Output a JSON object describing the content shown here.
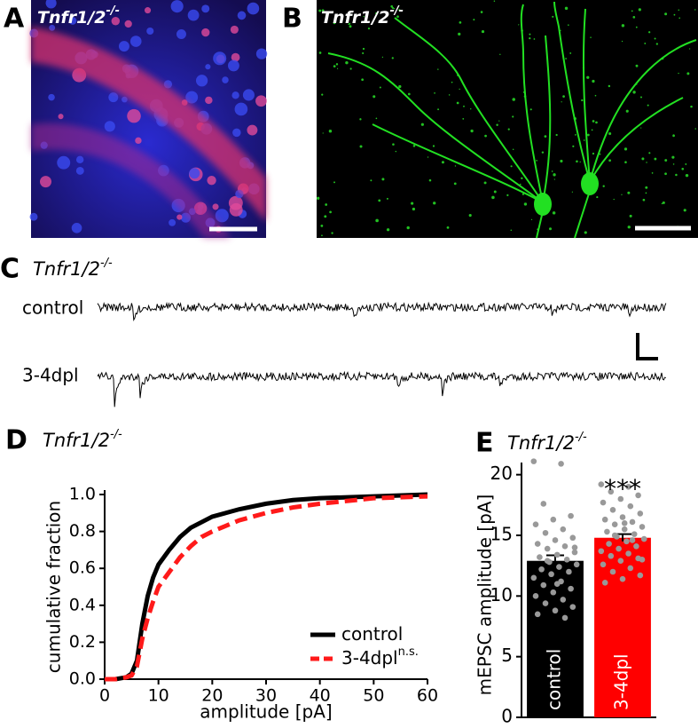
{
  "panels": {
    "A": {
      "label": "A",
      "title": "Tnfr1/2",
      "title_sup": "-/-"
    },
    "B": {
      "label": "B",
      "title": "Tnfr1/2",
      "title_sup": "-/-"
    },
    "C": {
      "label": "C",
      "title": "Tnfr1/2",
      "title_sup": "-/-",
      "traces": [
        "control",
        "3-4dpl"
      ]
    }
  },
  "chart_data": [
    {
      "type": "line",
      "label": "D",
      "title": "Tnfr1/2",
      "title_sup": "-/-",
      "x_label": "amplitude [pA]",
      "y_label": "cumulative fraction",
      "x": [
        0,
        2,
        4,
        5,
        6,
        7,
        8,
        9,
        10,
        12,
        14,
        16,
        18,
        20,
        25,
        30,
        35,
        40,
        50,
        60
      ],
      "series": [
        {
          "name": "control",
          "color": "#000000",
          "dashed": false,
          "values": [
            0,
            0,
            0.01,
            0.03,
            0.1,
            0.3,
            0.45,
            0.55,
            0.62,
            0.7,
            0.77,
            0.82,
            0.85,
            0.88,
            0.92,
            0.95,
            0.97,
            0.98,
            0.99,
            1.0
          ]
        },
        {
          "name": "3-4dpl",
          "color": "#ff1a1a",
          "dashed": true,
          "values": [
            0,
            0,
            0.01,
            0.02,
            0.07,
            0.22,
            0.33,
            0.42,
            0.5,
            0.58,
            0.66,
            0.72,
            0.77,
            0.8,
            0.86,
            0.9,
            0.93,
            0.95,
            0.98,
            0.99
          ]
        }
      ],
      "legend": "lower right",
      "legend_note": "n.s.",
      "xlim": [
        0,
        60
      ],
      "ylim": [
        0,
        1
      ],
      "xticks": [
        0,
        10,
        20,
        30,
        40,
        50,
        60
      ],
      "yticks": [
        {
          "value": 0,
          "label": "0.0"
        },
        0.2,
        0.4,
        0.6,
        0.8,
        {
          "value": 1,
          "label": "1.0"
        }
      ]
    },
    {
      "type": "bar",
      "label": "E",
      "title": "Tnfr1/2",
      "title_sup": "-/-",
      "y_label": "mEPSC amplitude [pA]",
      "categories": [
        "control",
        "3-4dpl"
      ],
      "values": [
        12.9,
        14.8
      ],
      "errors": [
        0.45,
        0.3
      ],
      "colors": [
        "#000000",
        "#ff0000"
      ],
      "point_color": "#999999",
      "points": [
        [
          21.1,
          20.9,
          17.6,
          16.6,
          16.3,
          15.9,
          15.5,
          15.2,
          14.8,
          14.6,
          14.3,
          14.1,
          13.9,
          13.6,
          13.4,
          13.2,
          13.0,
          12.8,
          12.6,
          12.4,
          12.2,
          12.0,
          11.8,
          11.5,
          11.2,
          10.9,
          10.6,
          10.3,
          10.0,
          9.7,
          9.4,
          9.1,
          8.8,
          8.5,
          8.2,
          12.9,
          14.0,
          11.0
        ],
        [
          19.2,
          19.0,
          18.6,
          18.3,
          18.0,
          17.7,
          17.4,
          17.1,
          16.8,
          16.5,
          16.3,
          16.1,
          15.9,
          15.7,
          15.5,
          15.3,
          15.1,
          14.9,
          14.7,
          14.5,
          14.3,
          14.1,
          13.9,
          13.7,
          13.5,
          13.3,
          13.1,
          12.9,
          12.6,
          12.3,
          12.0,
          11.7,
          11.4,
          11.1,
          14.6,
          15.0,
          13.0,
          16.0
        ]
      ],
      "annotation": "***",
      "ylim": [
        0,
        21
      ],
      "yticks": [
        0,
        5,
        10,
        15,
        20
      ]
    }
  ]
}
